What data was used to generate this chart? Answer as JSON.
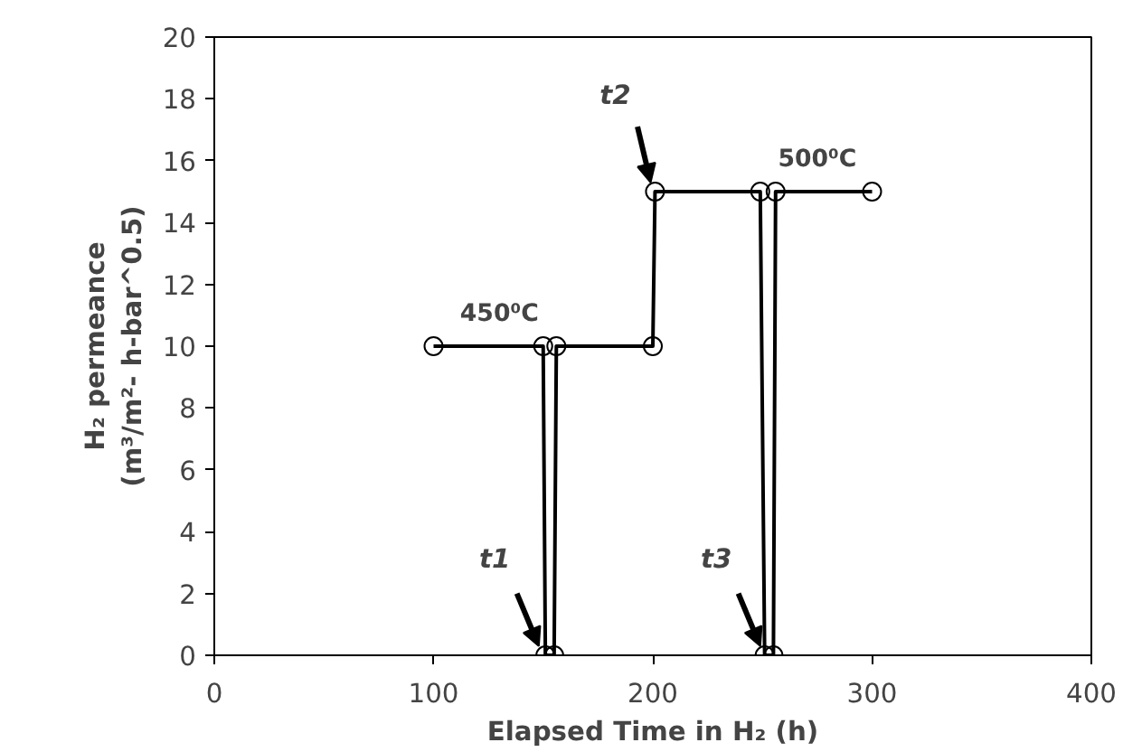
{
  "chart_data": {
    "type": "line",
    "xlabel": "Elapsed Time in H₂ (h)",
    "ylabel": "H₂ permeance\n(m³/m²- h-bar^0.5)",
    "x": [
      100,
      150,
      151,
      155,
      156,
      200,
      201,
      249,
      251,
      255,
      256,
      300
    ],
    "series": [
      {
        "color": "#000000",
        "values": [
          10,
          10,
          0,
          0,
          10,
          10,
          15,
          15,
          0,
          0,
          15,
          15
        ]
      }
    ],
    "xlim": [
      0,
      400
    ],
    "xticks": [
      0,
      100,
      200,
      300,
      400
    ],
    "ylim": [
      0,
      20
    ],
    "yticks": [
      0,
      2,
      4,
      6,
      8,
      10,
      12,
      14,
      16,
      18,
      20
    ],
    "grid": false,
    "marker": "circle",
    "line_style": "solid",
    "annotations": [
      {
        "text": "t1",
        "x": 150,
        "y": 0
      },
      {
        "text": "t2",
        "x": 201,
        "y": 15
      },
      {
        "text": "t3",
        "x": 251,
        "y": 0
      },
      {
        "text": "450⁰C",
        "x": 130,
        "y": 10
      },
      {
        "text": "500⁰C",
        "x": 275,
        "y": 15
      }
    ]
  }
}
